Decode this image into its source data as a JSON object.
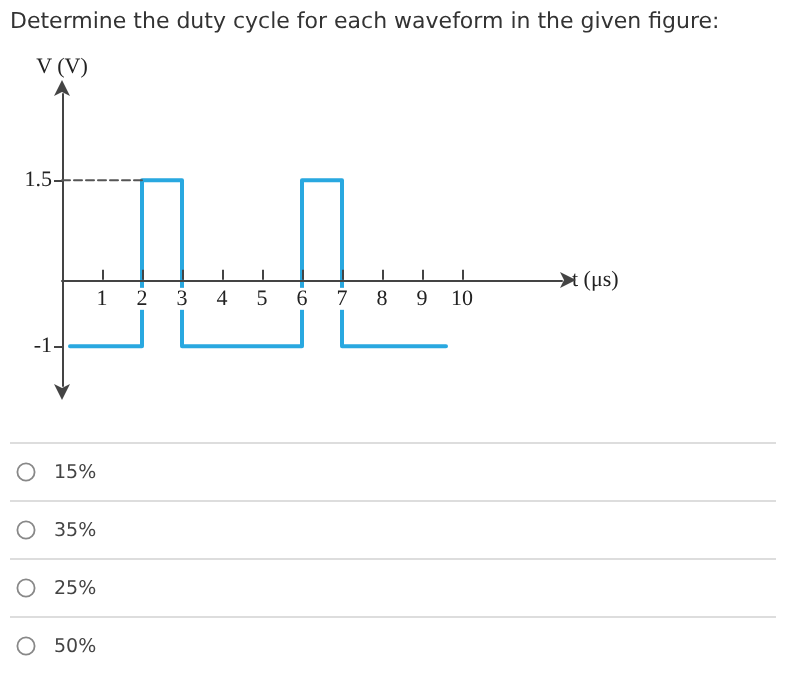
{
  "chart_data": {
    "type": "step",
    "title": "Determine the duty cycle for each waveform in the given figure:",
    "xlabel": "t (μs)",
    "ylabel": "V (V)",
    "xlim": [
      0,
      12.5
    ],
    "xticks": [
      1,
      2,
      3,
      4,
      5,
      6,
      7,
      8,
      9,
      10
    ],
    "ylim": [
      -1.6,
      2.8
    ],
    "yticks": [
      -1,
      1.5
    ],
    "grid": false,
    "marker": "none",
    "series": [
      {
        "type": "step",
        "color": "#29a8e0",
        "line_style": "solid",
        "x": [
          0.2,
          2,
          3,
          6,
          7,
          9.6
        ],
        "values": [
          -1,
          1.5,
          -1,
          1.5,
          -1,
          -1
        ]
      },
      {
        "type": "line",
        "color": "#555555",
        "line_style": "dashed",
        "x": [
          0,
          2
        ],
        "values": [
          1.5,
          1.5
        ]
      }
    ],
    "annotations": [
      "15%",
      "35%",
      "25%",
      "50%"
    ]
  }
}
